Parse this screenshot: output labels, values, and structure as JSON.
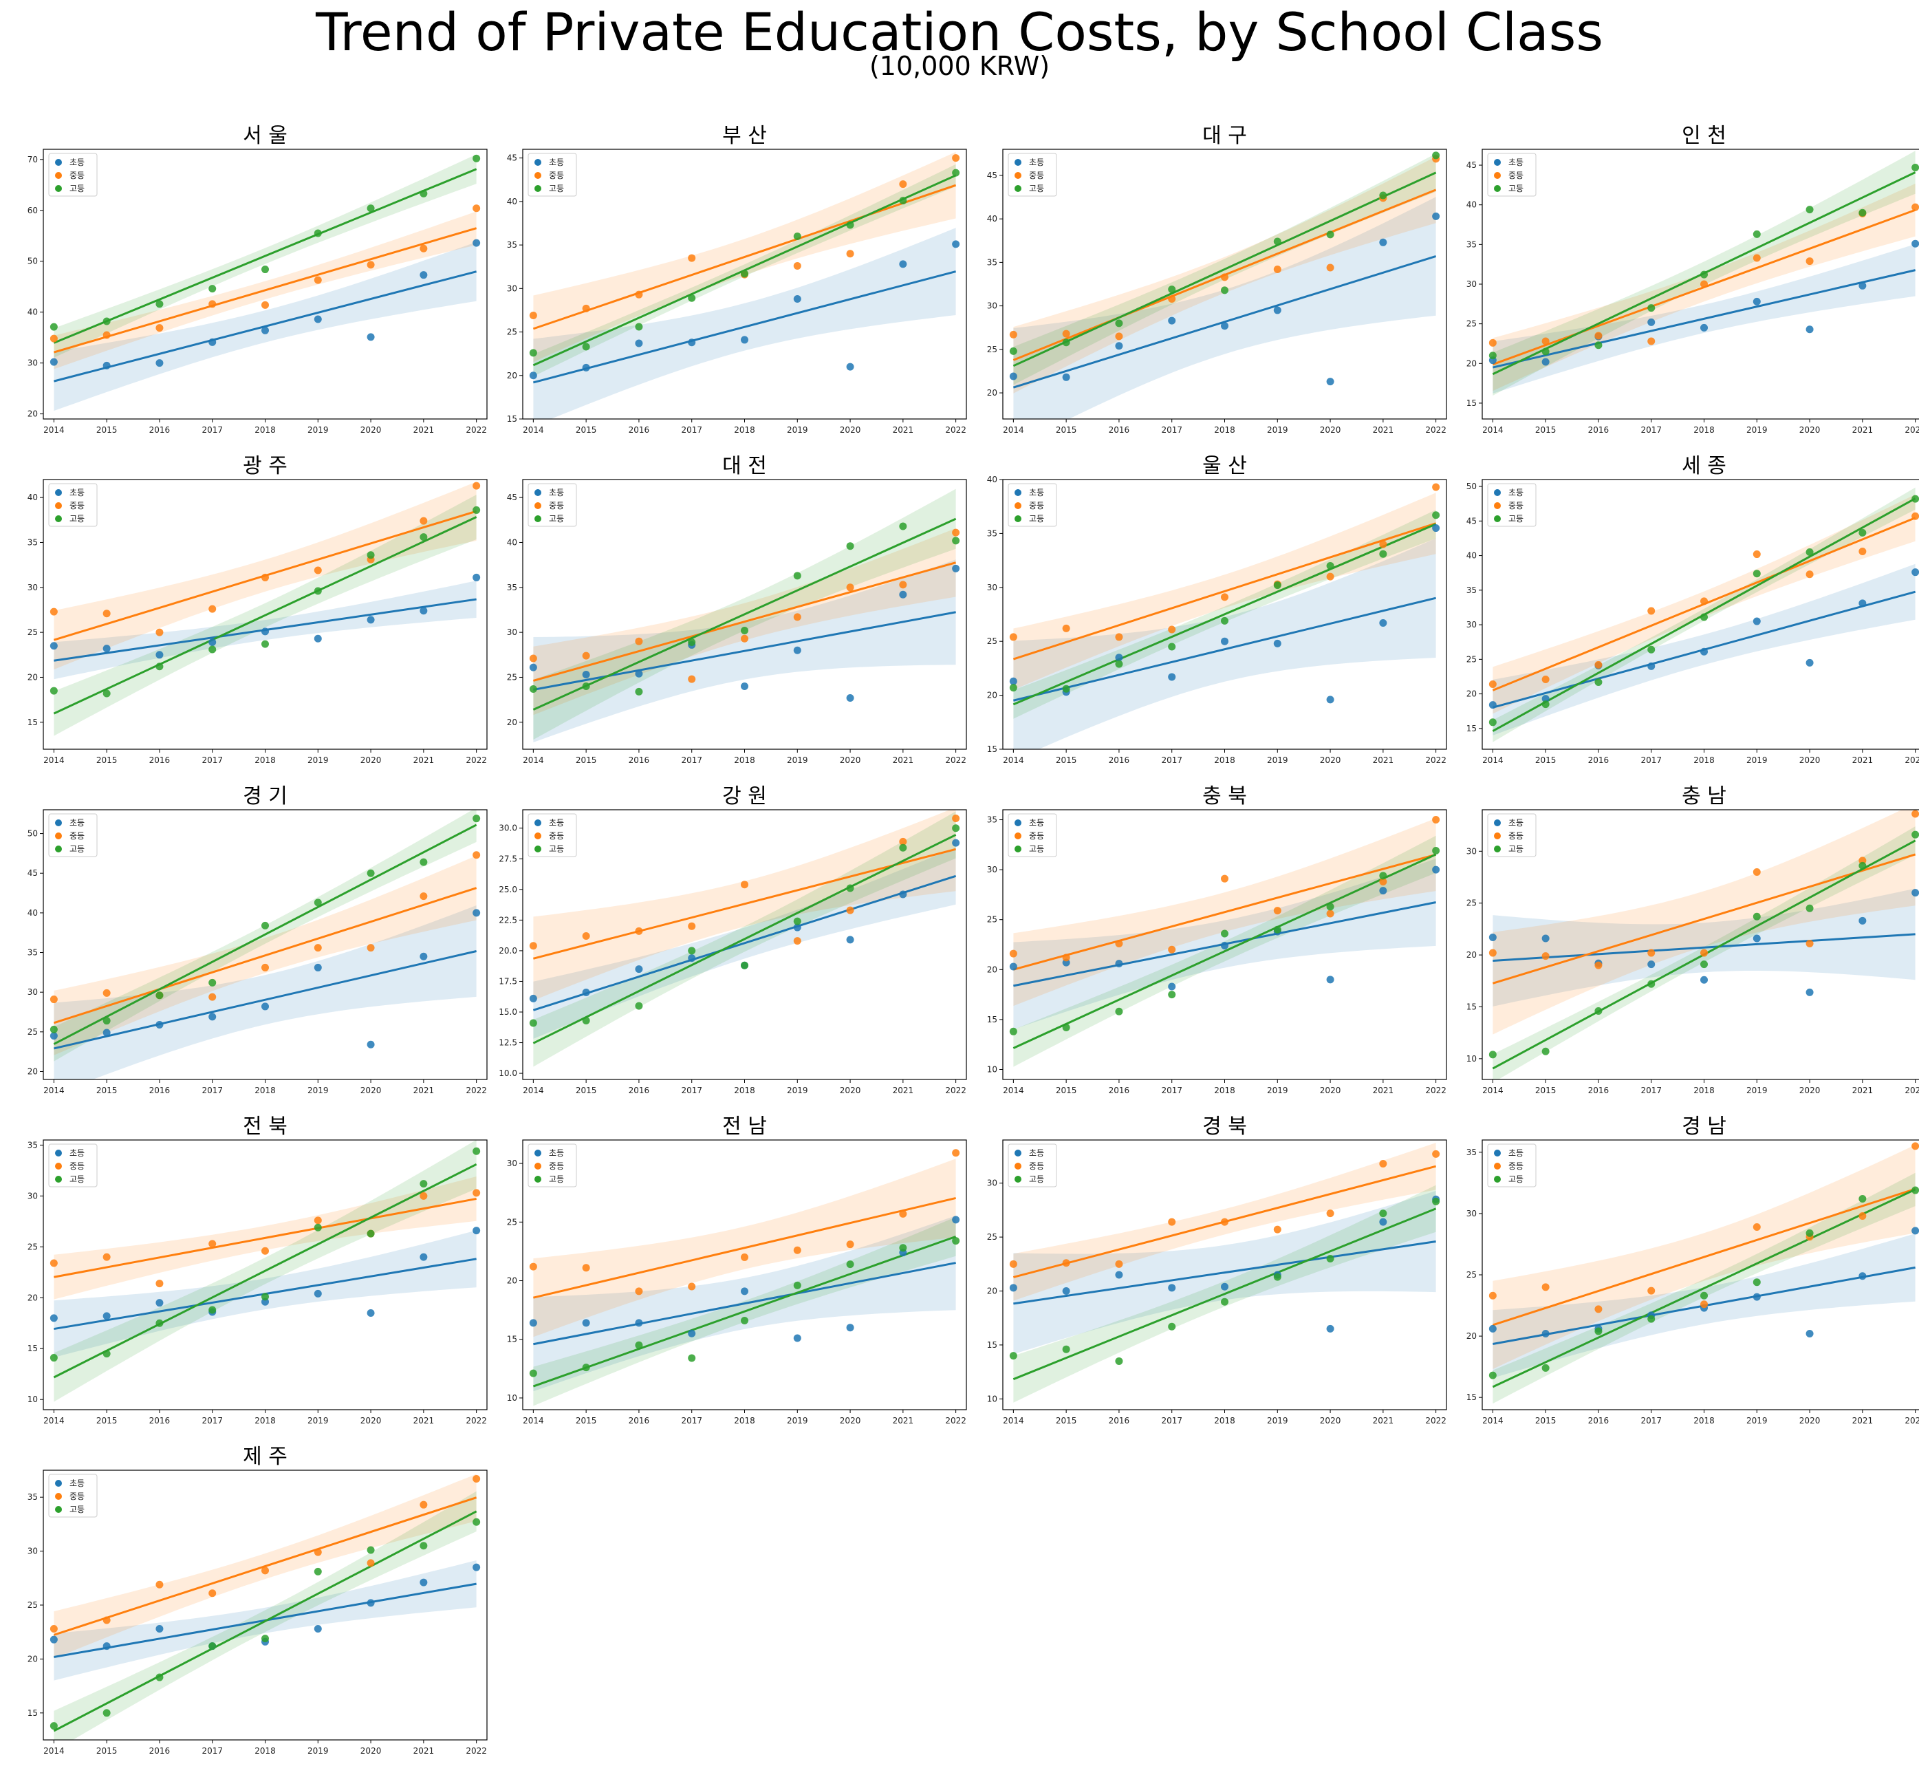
{
  "title": "Trend of Private Education Costs, by School Class",
  "subtitle": "(10,000 KRW)",
  "chart_data": {
    "type": "scatter",
    "layout": "4 columns × 5 rows of small multiples, regression line with confidence band per series",
    "series_names": [
      "초등",
      "중등",
      "고등"
    ],
    "colors": {
      "초등": "#1f77b4",
      "중등": "#ff7f0e",
      "고등": "#2ca02c"
    },
    "legend_position": "top-left",
    "x": [
      2014,
      2015,
      2016,
      2017,
      2018,
      2019,
      2020,
      2021,
      2022
    ],
    "panels": [
      {
        "title": "서 울",
        "ylim": [
          19,
          72
        ],
        "yticks": [
          20,
          30,
          40,
          50,
          60,
          70
        ],
        "series": {
          "초등": [
            30.2,
            29.5,
            30.0,
            34.1,
            36.4,
            38.6,
            35.1,
            47.3,
            53.6
          ],
          "중등": [
            34.8,
            35.5,
            36.9,
            41.6,
            41.4,
            46.3,
            49.3,
            52.5,
            60.4
          ],
          "고등": [
            37.1,
            38.2,
            41.6,
            44.6,
            48.4,
            55.5,
            60.4,
            63.3,
            70.2
          ]
        }
      },
      {
        "title": "부 산",
        "ylim": [
          15,
          46
        ],
        "yticks": [
          15,
          20,
          25,
          30,
          35,
          40,
          45
        ],
        "series": {
          "초등": [
            20.0,
            20.9,
            23.7,
            23.8,
            24.1,
            28.8,
            21.0,
            32.8,
            35.1
          ],
          "중등": [
            26.9,
            27.7,
            29.3,
            33.5,
            31.6,
            32.6,
            34.0,
            42.0,
            45.0
          ],
          "고등": [
            22.6,
            23.3,
            25.6,
            28.9,
            31.7,
            36.0,
            37.3,
            40.1,
            43.3
          ]
        }
      },
      {
        "title": "대 구",
        "ylim": [
          17,
          48
        ],
        "yticks": [
          20,
          25,
          30,
          35,
          40,
          45
        ],
        "series": {
          "초등": [
            21.9,
            21.8,
            25.4,
            28.3,
            27.7,
            29.5,
            21.3,
            37.3,
            40.3
          ],
          "중등": [
            26.7,
            26.8,
            26.5,
            30.8,
            33.3,
            34.2,
            34.4,
            42.4,
            46.9
          ],
          "고등": [
            24.8,
            25.8,
            28.0,
            31.9,
            31.8,
            37.4,
            38.2,
            42.7,
            47.3
          ]
        }
      },
      {
        "title": "인 천",
        "ylim": [
          13,
          47
        ],
        "yticks": [
          15,
          20,
          25,
          30,
          35,
          40,
          45
        ],
        "series": {
          "초등": [
            20.4,
            20.2,
            23.4,
            25.2,
            24.5,
            27.8,
            24.3,
            29.8,
            35.1
          ],
          "중등": [
            22.6,
            22.8,
            23.5,
            22.8,
            30.0,
            33.3,
            32.9,
            38.9,
            39.7
          ],
          "고등": [
            21.0,
            21.5,
            22.3,
            27.0,
            31.2,
            36.3,
            39.4,
            39.0,
            44.7
          ]
        }
      },
      {
        "title": "광 주",
        "ylim": [
          12,
          42
        ],
        "yticks": [
          15,
          20,
          25,
          30,
          35,
          40
        ],
        "series": {
          "초등": [
            23.5,
            23.2,
            22.5,
            23.9,
            25.1,
            24.3,
            26.4,
            27.4,
            31.1
          ],
          "중등": [
            27.3,
            27.1,
            25.0,
            27.6,
            31.1,
            31.9,
            33.1,
            37.4,
            41.3
          ],
          "고등": [
            18.5,
            18.2,
            21.2,
            23.1,
            23.7,
            29.6,
            33.6,
            35.6,
            38.6
          ]
        }
      },
      {
        "title": "대 전",
        "ylim": [
          17,
          47
        ],
        "yticks": [
          20,
          25,
          30,
          35,
          40,
          45
        ],
        "series": {
          "초등": [
            26.1,
            25.3,
            25.4,
            28.6,
            24.0,
            28.0,
            22.7,
            34.2,
            37.1
          ],
          "중등": [
            27.1,
            27.4,
            29.0,
            24.8,
            29.3,
            31.7,
            35.0,
            35.3,
            41.1
          ],
          "고등": [
            23.7,
            24.0,
            23.4,
            28.9,
            30.2,
            36.3,
            39.6,
            41.8,
            40.2
          ]
        }
      },
      {
        "title": "울 산",
        "ylim": [
          15,
          40
        ],
        "yticks": [
          15,
          20,
          25,
          30,
          35,
          40
        ],
        "series": {
          "초등": [
            21.3,
            20.3,
            23.5,
            21.7,
            25.0,
            24.8,
            19.6,
            26.7,
            35.5
          ],
          "중등": [
            25.4,
            26.2,
            25.4,
            26.1,
            29.1,
            30.3,
            31.0,
            34.0,
            39.3
          ],
          "고등": [
            20.7,
            20.6,
            22.9,
            24.5,
            26.9,
            30.2,
            32.0,
            33.1,
            36.7
          ]
        }
      },
      {
        "title": "세 종",
        "ylim": [
          12,
          51
        ],
        "yticks": [
          15,
          20,
          25,
          30,
          35,
          40,
          45,
          50
        ],
        "series": {
          "초등": [
            18.4,
            19.3,
            24.1,
            24.0,
            26.1,
            30.5,
            24.5,
            33.1,
            37.6
          ],
          "중등": [
            21.4,
            22.1,
            24.2,
            32.0,
            33.4,
            40.2,
            37.3,
            40.6,
            45.7
          ],
          "고등": [
            15.9,
            18.5,
            21.7,
            26.4,
            31.1,
            37.4,
            40.5,
            43.3,
            48.2
          ]
        }
      },
      {
        "title": "경 기",
        "ylim": [
          19,
          53
        ],
        "yticks": [
          20,
          25,
          30,
          35,
          40,
          45,
          50
        ],
        "series": {
          "초등": [
            24.5,
            24.9,
            25.9,
            26.9,
            28.2,
            33.1,
            23.4,
            34.5,
            40.0
          ],
          "중등": [
            29.1,
            29.9,
            29.6,
            29.4,
            33.1,
            35.6,
            35.6,
            42.1,
            47.3
          ],
          "고등": [
            25.3,
            26.4,
            29.6,
            31.2,
            38.4,
            41.3,
            45.0,
            46.4,
            51.9
          ]
        }
      },
      {
        "title": "강 원",
        "ylim": [
          9.5,
          31.5
        ],
        "yticks": [
          10.0,
          12.5,
          15.0,
          17.5,
          20.0,
          22.5,
          25.0,
          27.5,
          30.0
        ],
        "yformat": "1dp",
        "series": {
          "초등": [
            16.1,
            16.6,
            18.5,
            19.4,
            18.8,
            21.9,
            20.9,
            24.6,
            28.8
          ],
          "중등": [
            20.4,
            21.2,
            21.6,
            22.0,
            25.4,
            20.8,
            23.3,
            28.9,
            30.8
          ],
          "고등": [
            14.1,
            14.3,
            15.5,
            20.0,
            18.8,
            22.4,
            25.1,
            28.4,
            30.0
          ]
        }
      },
      {
        "title": "충 북",
        "ylim": [
          9,
          36
        ],
        "yticks": [
          10,
          15,
          20,
          25,
          30,
          35
        ],
        "series": {
          "초등": [
            20.3,
            20.7,
            20.6,
            18.3,
            22.4,
            23.8,
            19.0,
            27.9,
            30.0
          ],
          "중등": [
            21.6,
            21.2,
            22.6,
            22.0,
            29.1,
            25.9,
            25.6,
            28.8,
            35.0
          ],
          "고등": [
            13.8,
            14.2,
            15.8,
            17.5,
            23.6,
            24.0,
            26.3,
            29.4,
            31.9
          ]
        }
      },
      {
        "title": "충 남",
        "ylim": [
          8,
          34
        ],
        "yticks": [
          10,
          15,
          20,
          25,
          30
        ],
        "series": {
          "초등": [
            21.7,
            21.6,
            19.2,
            19.1,
            17.6,
            21.6,
            16.4,
            23.3,
            26.0
          ],
          "중등": [
            20.2,
            19.9,
            19.0,
            20.2,
            20.2,
            28.0,
            21.1,
            29.1,
            33.6
          ],
          "고등": [
            10.4,
            10.7,
            14.6,
            17.2,
            19.1,
            23.7,
            24.5,
            28.6,
            31.6
          ]
        }
      },
      {
        "title": "전 북",
        "ylim": [
          9,
          35.5
        ],
        "yticks": [
          10,
          15,
          20,
          25,
          30,
          35
        ],
        "series": {
          "초등": [
            18.0,
            18.2,
            19.5,
            18.6,
            19.6,
            20.4,
            18.5,
            24.0,
            26.6
          ],
          "중등": [
            23.4,
            24.0,
            21.4,
            25.3,
            24.6,
            27.6,
            26.3,
            30.0,
            30.3
          ],
          "고등": [
            14.1,
            14.5,
            17.5,
            18.8,
            20.1,
            26.9,
            26.3,
            31.2,
            34.4
          ]
        }
      },
      {
        "title": "전 남",
        "ylim": [
          9,
          32
        ],
        "yticks": [
          10,
          15,
          20,
          25,
          30
        ],
        "series": {
          "초등": [
            16.4,
            16.4,
            16.4,
            15.5,
            19.1,
            15.1,
            16.0,
            22.4,
            25.2
          ],
          "중등": [
            21.2,
            21.1,
            19.1,
            19.5,
            22.0,
            22.6,
            23.1,
            25.7,
            30.9
          ],
          "고등": [
            12.1,
            12.6,
            14.5,
            13.4,
            16.6,
            19.6,
            21.4,
            22.8,
            23.4
          ]
        }
      },
      {
        "title": "경 북",
        "ylim": [
          9,
          34
        ],
        "yticks": [
          10,
          15,
          20,
          25,
          30
        ],
        "series": {
          "초등": [
            20.3,
            20.0,
            21.5,
            20.3,
            20.4,
            21.5,
            16.5,
            26.4,
            28.5
          ],
          "중등": [
            22.5,
            22.6,
            22.5,
            26.4,
            26.4,
            25.7,
            27.2,
            31.8,
            32.7
          ],
          "고등": [
            14.0,
            14.6,
            13.5,
            16.7,
            19.0,
            21.3,
            23.0,
            27.2,
            28.3
          ]
        }
      },
      {
        "title": "경 남",
        "ylim": [
          14,
          36
        ],
        "yticks": [
          15,
          20,
          25,
          30,
          35
        ],
        "series": {
          "초등": [
            20.6,
            20.2,
            20.6,
            21.7,
            22.3,
            23.2,
            20.2,
            24.9,
            28.6
          ],
          "중등": [
            23.3,
            24.0,
            22.2,
            23.7,
            22.6,
            28.9,
            28.1,
            29.8,
            35.5
          ],
          "고등": [
            16.8,
            17.4,
            20.4,
            21.4,
            23.3,
            24.4,
            28.4,
            31.2,
            31.9
          ]
        }
      },
      {
        "title": "제 주",
        "ylim": [
          12.5,
          37.5
        ],
        "yticks": [
          15,
          20,
          25,
          30,
          35
        ],
        "series": {
          "초등": [
            21.8,
            21.2,
            22.8,
            21.2,
            21.6,
            22.8,
            25.2,
            27.1,
            28.5
          ],
          "중등": [
            22.8,
            23.6,
            26.9,
            26.1,
            28.2,
            29.9,
            28.9,
            34.3,
            36.7
          ],
          "고등": [
            13.8,
            15.0,
            18.3,
            21.2,
            21.9,
            28.1,
            30.1,
            30.5,
            32.7
          ]
        }
      }
    ]
  }
}
